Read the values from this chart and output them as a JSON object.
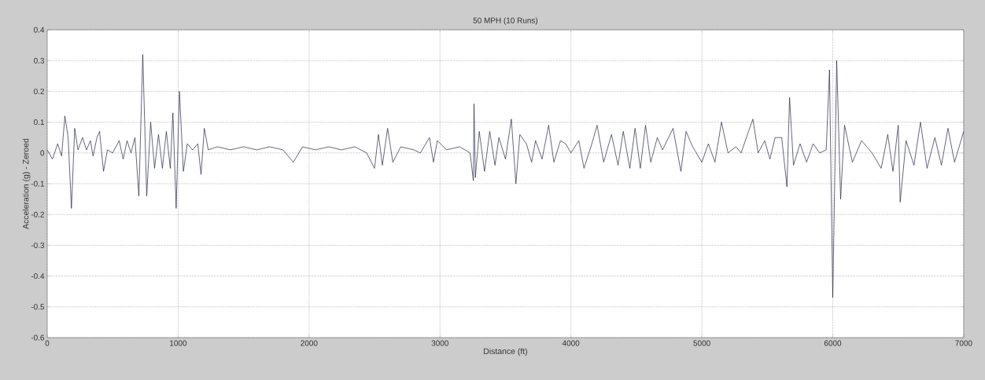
{
  "chart_data": {
    "type": "line",
    "title": "50 MPH (10 Runs)",
    "xlabel": "Distance (ft)",
    "ylabel": "Acceleration (g) - Zeroed",
    "xlim": [
      0,
      7000
    ],
    "ylim": [
      -0.6,
      0.4
    ],
    "xticks": [
      0,
      1000,
      2000,
      3000,
      4000,
      5000,
      6000,
      7000
    ],
    "yticks": [
      -0.6,
      -0.5,
      -0.4,
      -0.3,
      -0.2,
      -0.1,
      0,
      0.1,
      0.2,
      0.3,
      0.4
    ],
    "grid": true,
    "series": [
      {
        "color": "#22224a",
        "x": [
          0,
          40,
          80,
          110,
          135,
          160,
          185,
          210,
          235,
          270,
          300,
          330,
          350,
          380,
          400,
          430,
          460,
          500,
          550,
          580,
          610,
          640,
          670,
          700,
          730,
          760,
          790,
          820,
          850,
          880,
          910,
          940,
          960,
          985,
          1010,
          1040,
          1070,
          1110,
          1150,
          1175,
          1200,
          1230,
          1300,
          1400,
          1500,
          1600,
          1700,
          1800,
          1880,
          1950,
          2050,
          2150,
          2250,
          2350,
          2440,
          2500,
          2530,
          2560,
          2600,
          2640,
          2700,
          2800,
          2850,
          2920,
          2950,
          2980,
          3050,
          3150,
          3230,
          3255,
          3260,
          3270,
          3300,
          3340,
          3380,
          3420,
          3450,
          3500,
          3545,
          3580,
          3610,
          3660,
          3700,
          3730,
          3780,
          3830,
          3870,
          3920,
          3960,
          4000,
          4060,
          4100,
          4160,
          4200,
          4250,
          4310,
          4360,
          4400,
          4450,
          4490,
          4530,
          4570,
          4610,
          4660,
          4700,
          4780,
          4840,
          4880,
          4930,
          5000,
          5050,
          5100,
          5150,
          5200,
          5260,
          5300,
          5340,
          5390,
          5430,
          5480,
          5520,
          5560,
          5610,
          5650,
          5670,
          5700,
          5750,
          5800,
          5850,
          5900,
          5950,
          5975,
          6000,
          6030,
          6060,
          6090,
          6150,
          6220,
          6300,
          6370,
          6420,
          6460,
          6500,
          6515,
          6560,
          6620,
          6670,
          6720,
          6780,
          6830,
          6880,
          6930,
          7000
        ],
        "values": [
          0.01,
          -0.02,
          0.03,
          -0.01,
          0.12,
          0.05,
          -0.18,
          0.08,
          0.01,
          0.05,
          0.01,
          0.04,
          -0.01,
          0.05,
          0.07,
          -0.06,
          0.01,
          0.0,
          0.04,
          -0.02,
          0.04,
          0.0,
          0.05,
          -0.14,
          0.32,
          -0.14,
          0.1,
          -0.05,
          0.06,
          -0.05,
          0.07,
          -0.05,
          0.13,
          -0.18,
          0.2,
          -0.06,
          0.03,
          0.01,
          0.03,
          -0.07,
          0.08,
          0.01,
          0.02,
          0.01,
          0.02,
          0.01,
          0.02,
          0.01,
          -0.03,
          0.02,
          0.01,
          0.02,
          0.01,
          0.02,
          0.0,
          -0.05,
          0.06,
          -0.04,
          0.08,
          -0.03,
          0.02,
          0.01,
          0.0,
          0.05,
          -0.03,
          0.04,
          0.01,
          0.02,
          0.0,
          -0.09,
          0.16,
          -0.08,
          0.07,
          -0.06,
          0.07,
          -0.04,
          0.05,
          -0.02,
          0.11,
          -0.1,
          0.06,
          0.03,
          -0.03,
          0.04,
          -0.02,
          0.09,
          -0.03,
          0.04,
          0.03,
          0.0,
          0.04,
          -0.05,
          0.03,
          0.09,
          -0.03,
          0.06,
          -0.04,
          0.07,
          -0.05,
          0.08,
          -0.05,
          0.09,
          -0.03,
          0.05,
          0.01,
          0.08,
          -0.06,
          0.07,
          0.02,
          -0.03,
          0.03,
          -0.03,
          0.1,
          0.0,
          0.02,
          0.0,
          0.05,
          0.11,
          0.0,
          0.04,
          -0.02,
          0.05,
          0.05,
          -0.11,
          0.18,
          -0.04,
          0.03,
          -0.03,
          0.03,
          0.0,
          0.01,
          0.27,
          -0.47,
          0.3,
          -0.15,
          0.09,
          -0.03,
          0.04,
          0.0,
          -0.05,
          0.06,
          -0.06,
          0.09,
          -0.16,
          0.04,
          -0.04,
          0.1,
          -0.05,
          0.05,
          -0.04,
          0.08,
          -0.03,
          0.07
        ]
      }
    ]
  }
}
